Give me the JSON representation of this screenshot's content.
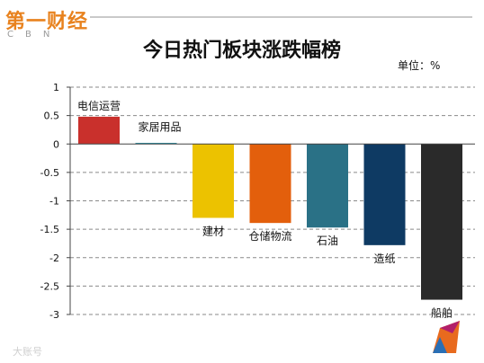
{
  "logo": {
    "text": "第一财经",
    "sub": "CBN"
  },
  "title": "今日热门板块涨跌幅榜",
  "unit_label": "单位：%",
  "watermark": "大账号",
  "colors": {
    "grid": "#8a8a8a",
    "axis": "#444444"
  },
  "chart_data": {
    "type": "bar",
    "title": "今日热门板块涨跌幅榜",
    "xlabel": "",
    "ylabel": "",
    "ylim": [
      -3,
      1
    ],
    "yticks": [
      1,
      0.5,
      0,
      -0.5,
      -1,
      -1.5,
      -2,
      -2.5,
      -3
    ],
    "ytick_labels": [
      "1",
      "0.5",
      "0",
      "-0.5",
      "-1",
      "-1.5",
      "-2",
      "-2.5",
      "-3"
    ],
    "grid": true,
    "categories": [
      "电信运营",
      "家居用品",
      "建材",
      "仓储物流",
      "石油",
      "造纸",
      "船舶"
    ],
    "values": [
      0.48,
      0.02,
      -1.3,
      -1.39,
      -1.47,
      -1.78,
      -2.74
    ],
    "colors": [
      "#c9302c",
      "#2e8fa3",
      "#ecc200",
      "#e35f0c",
      "#2a7186",
      "#0e3a63",
      "#2a2a2a"
    ]
  }
}
